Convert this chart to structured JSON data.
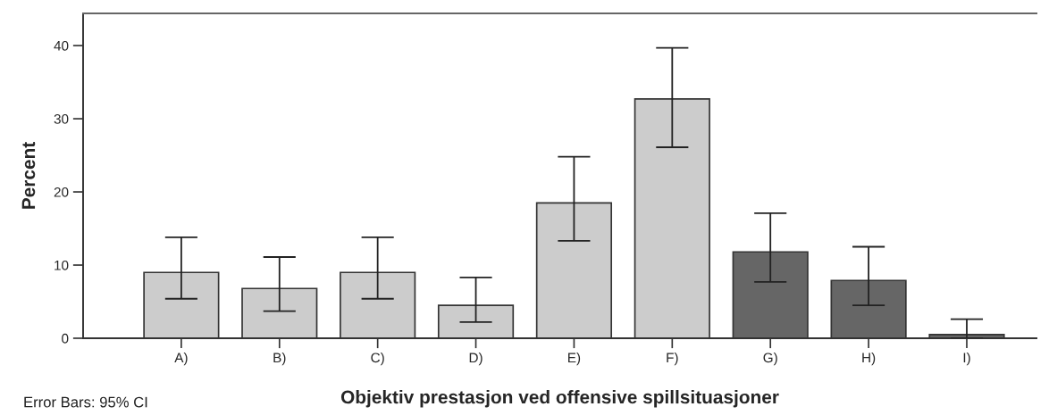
{
  "chart_data": {
    "type": "bar",
    "xlabel": "Objektiv prestasjon ved offensive spillsituasjoner",
    "ylabel": "Percent",
    "categories": [
      "A)",
      "B)",
      "C)",
      "D)",
      "E)",
      "F)",
      "G)",
      "H)",
      "I)"
    ],
    "values": [
      9.0,
      6.8,
      9.0,
      4.5,
      18.5,
      32.7,
      11.8,
      7.9,
      0.5
    ],
    "colors": [
      "#cccccc",
      "#cccccc",
      "#cccccc",
      "#cccccc",
      "#cccccc",
      "#cccccc",
      "#666666",
      "#666666",
      "#666666"
    ],
    "errors": [
      [
        5.4,
        13.8
      ],
      [
        3.7,
        11.1
      ],
      [
        5.4,
        13.8
      ],
      [
        2.2,
        8.3
      ],
      [
        13.3,
        24.8
      ],
      [
        26.1,
        39.7
      ],
      [
        7.7,
        17.1
      ],
      [
        4.5,
        12.5
      ],
      [
        0,
        2.6
      ]
    ],
    "ylim": [
      0,
      44.4
    ],
    "yticks": [
      0,
      10,
      20,
      30,
      40
    ],
    "grid": false,
    "legend": false,
    "annotations": [
      "Error Bars: 95% CI"
    ]
  }
}
